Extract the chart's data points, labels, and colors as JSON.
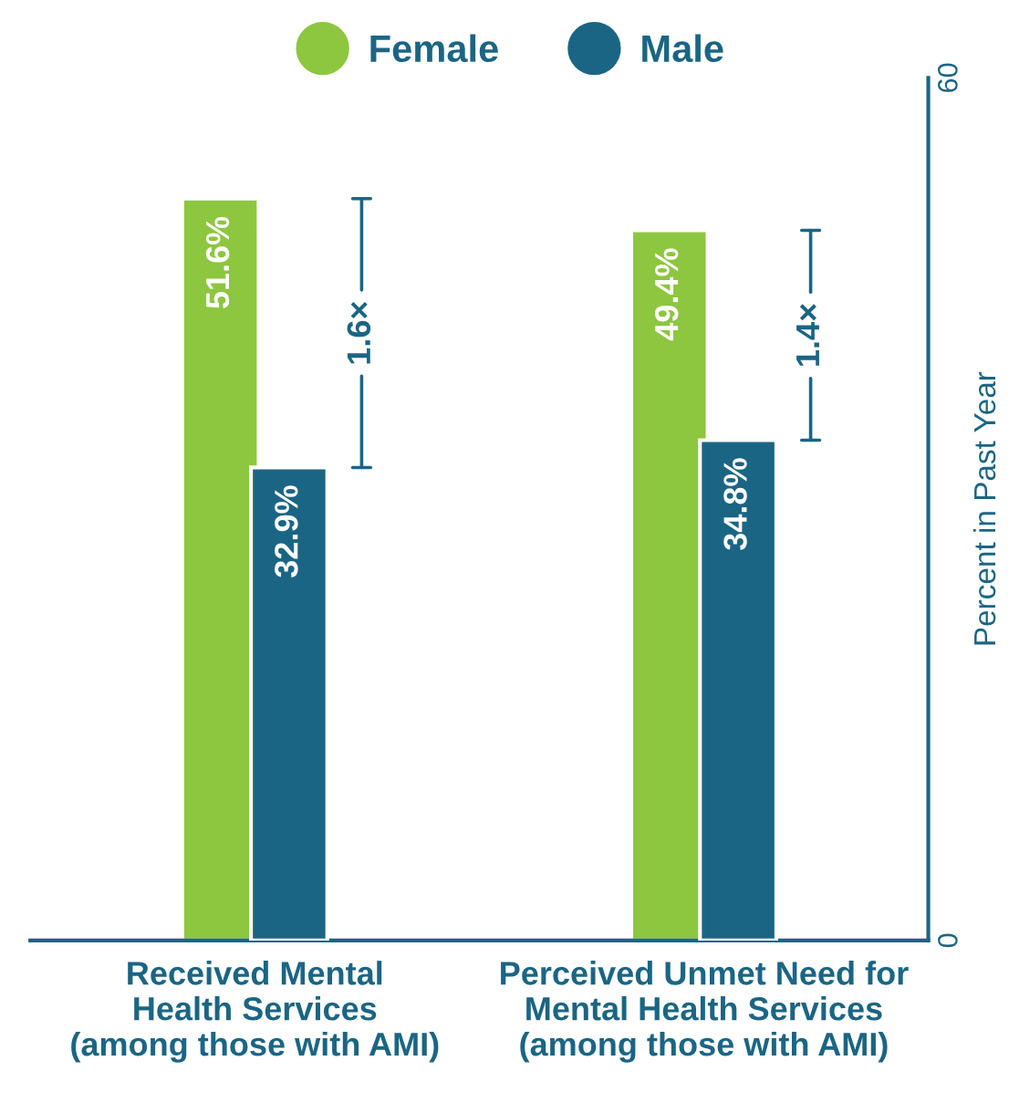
{
  "chart_data": {
    "type": "bar",
    "categories": [
      "Received Mental\nHealth Services\n(among those with AMI)",
      "Perceived Unmet Need for\nMental Health Services\n(among those with AMI)"
    ],
    "series": [
      {
        "name": "Female",
        "color": "#8dc63f",
        "values": [
          51.6,
          49.4
        ],
        "value_labels": [
          "51.6%",
          "49.4%"
        ]
      },
      {
        "name": "Male",
        "color": "#1b6584",
        "values": [
          32.9,
          34.8
        ],
        "value_labels": [
          "32.9%",
          "34.8%"
        ]
      }
    ],
    "ylabel": "Percent in Past Year",
    "ylim": [
      0,
      60
    ],
    "yticks": [
      0,
      60
    ],
    "annotations": [
      {
        "text": "1.6×",
        "x": "Received Mental\nHealth Services\n(among those with AMI)",
        "y": 42.25
      },
      {
        "text": "1.4×",
        "x": "Perceived Unmet Need for\nMental Health Services\n(among those with AMI)",
        "y": 42.1
      }
    ],
    "legend": "top",
    "grid": false
  }
}
